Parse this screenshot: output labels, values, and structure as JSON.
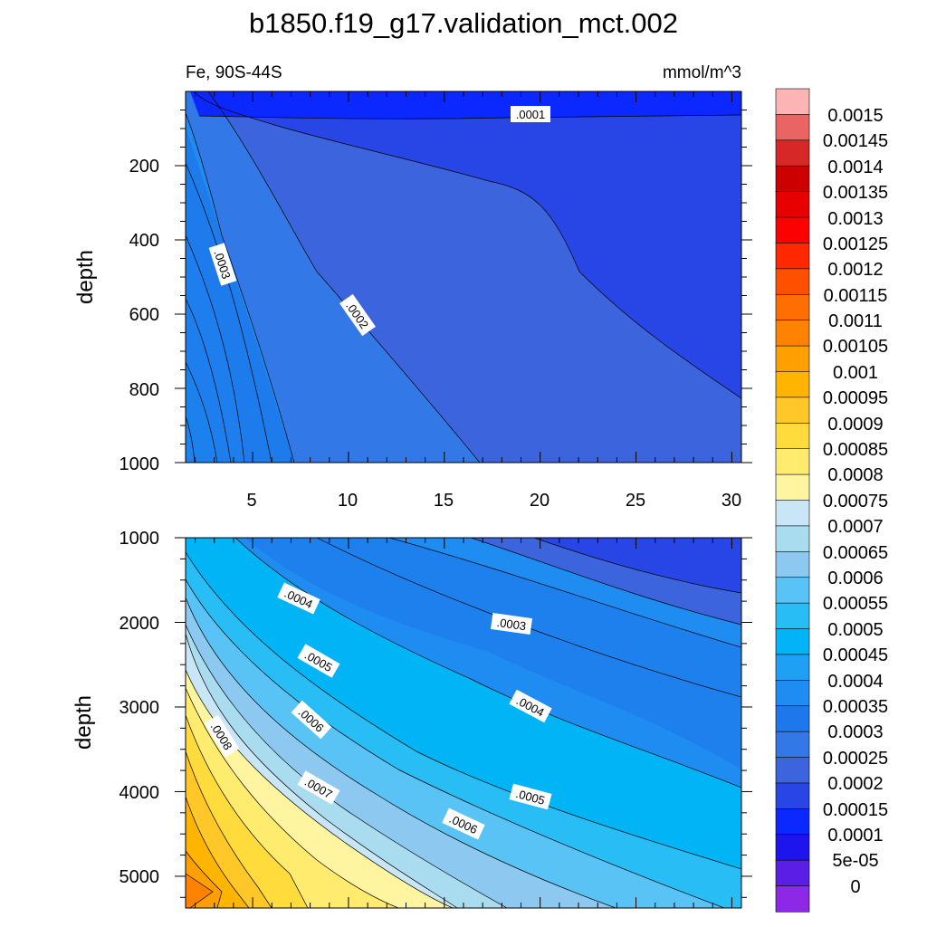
{
  "chart_data": {
    "type": "heatmap",
    "title": "b1850.f19_g17.validation_mct.002",
    "subtitle_left": "Fe, 90S-44S",
    "subtitle_right": "mmol/m^3",
    "ylabel": "depth",
    "colorbar": {
      "labels": [
        "0.0015",
        "0.00145",
        "0.0014",
        "0.00135",
        "0.0013",
        "0.00125",
        "0.0012",
        "0.00115",
        "0.0011",
        "0.00105",
        "0.001",
        "0.00095",
        "0.0009",
        "0.00085",
        "0.0008",
        "0.00075",
        "0.0007",
        "0.00065",
        "0.0006",
        "0.00055",
        "0.0005",
        "0.00045",
        "0.0004",
        "0.00035",
        "0.0003",
        "0.00025",
        "0.0002",
        "0.00015",
        "0.0001",
        "5e-05",
        "0"
      ],
      "colors": [
        "#fcb4b4",
        "#eb6464",
        "#d72828",
        "#cc0000",
        "#e60000",
        "#ff0000",
        "#ff2800",
        "#ff5000",
        "#ff6e00",
        "#ff8200",
        "#ffa000",
        "#ffb400",
        "#ffc828",
        "#ffdc3c",
        "#ffeb6e",
        "#fff5a0",
        "#c8e6f5",
        "#aadcf0",
        "#8cc8ef",
        "#5ac3f5",
        "#28bef5",
        "#00b4f5",
        "#1ea0f5",
        "#1e8cf0",
        "#1e78eb",
        "#3278e6",
        "#3c64dc",
        "#2846e6",
        "#0a28ff",
        "#1e14ee",
        "#5a1ee6",
        "#8c28e6"
      ]
    },
    "upper_panel": {
      "x_ticks": [
        "5",
        "10",
        "15",
        "20",
        "25",
        "30"
      ],
      "y_ticks": [
        "200",
        "400",
        "600",
        "800",
        "1000"
      ],
      "xlim": [
        1.5,
        30.5
      ],
      "ylim": [
        1000,
        0
      ],
      "contour_labels": [
        ".0001",
        ".0003",
        ".0002"
      ]
    },
    "lower_panel": {
      "y_ticks": [
        "1000",
        "2000",
        "3000",
        "4000",
        "5000"
      ],
      "ylim": [
        5375,
        1000
      ],
      "contour_labels": [
        ".0004",
        ".0003",
        ".0005",
        ".0004",
        ".0006",
        ".0005",
        ".0006",
        ".0007",
        ".0008"
      ]
    }
  }
}
